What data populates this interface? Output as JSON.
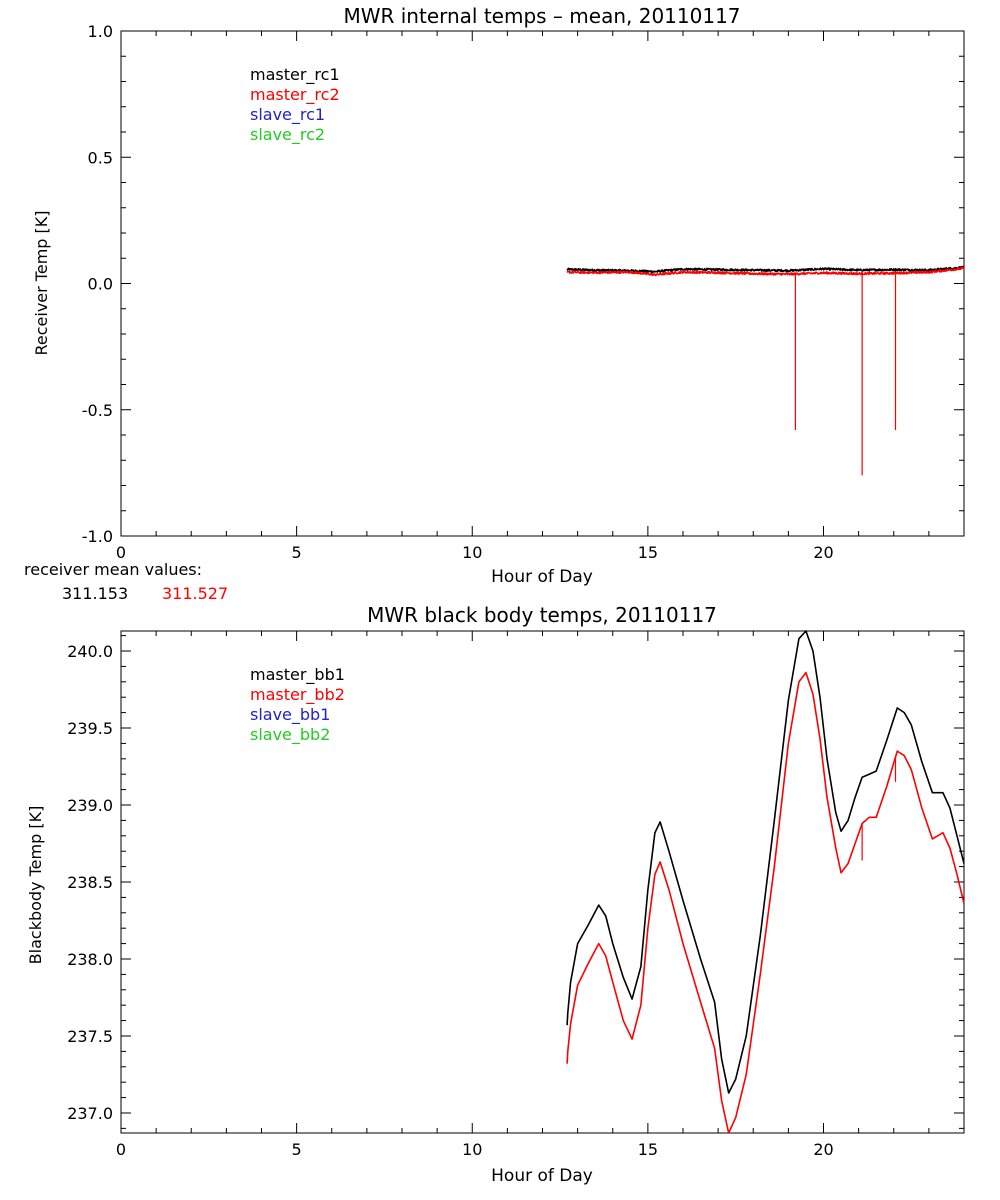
{
  "chart_data": [
    {
      "type": "line",
      "title": "MWR internal temps – mean, 20110117",
      "xlabel": "Hour of Day",
      "ylabel": "Receiver Temp [K]",
      "xlim": [
        0,
        24
      ],
      "ylim": [
        -1.0,
        1.0
      ],
      "xticks": [
        0,
        5,
        10,
        15,
        20
      ],
      "yticks": [
        -1.0,
        -0.5,
        0.0,
        0.5,
        1.0
      ],
      "x_minor_step": 1,
      "y_minor_step": 0.1,
      "grid": false,
      "legend_position": "top-left",
      "series": [
        {
          "name": "master_rc1",
          "color": "#000000",
          "noise": 0.004,
          "points": [
            [
              12.7,
              0.056
            ],
            [
              13.5,
              0.053
            ],
            [
              14.5,
              0.051
            ],
            [
              15.2,
              0.047
            ],
            [
              16.0,
              0.057
            ],
            [
              17.0,
              0.055
            ],
            [
              18.0,
              0.053
            ],
            [
              19.0,
              0.051
            ],
            [
              20.0,
              0.058
            ],
            [
              21.0,
              0.053
            ],
            [
              22.0,
              0.055
            ],
            [
              23.0,
              0.053
            ],
            [
              24.0,
              0.064
            ]
          ]
        },
        {
          "name": "master_rc2",
          "color": "#ff0000",
          "noise": 0.004,
          "points": [
            [
              12.7,
              0.045
            ],
            [
              13.5,
              0.043
            ],
            [
              14.5,
              0.045
            ],
            [
              15.2,
              0.035
            ],
            [
              16.0,
              0.045
            ],
            [
              17.0,
              0.043
            ],
            [
              18.0,
              0.039
            ],
            [
              19.0,
              0.037
            ],
            [
              20.0,
              0.042
            ],
            [
              21.0,
              0.039
            ],
            [
              22.0,
              0.041
            ],
            [
              23.0,
              0.045
            ],
            [
              24.0,
              0.06
            ]
          ],
          "spikes": [
            [
              19.2,
              -0.58
            ],
            [
              21.1,
              -0.76
            ],
            [
              22.05,
              -0.58
            ]
          ]
        },
        {
          "name": "slave_rc1",
          "color": "#2222cc",
          "points": []
        },
        {
          "name": "slave_rc2",
          "color": "#22cc22",
          "points": []
        }
      ],
      "note": {
        "label": "receiver mean values:",
        "values": [
          {
            "text": "311.153",
            "color": "#000000"
          },
          {
            "text": "311.527",
            "color": "#ff0000"
          }
        ]
      }
    },
    {
      "type": "line",
      "title": "MWR black body temps, 20110117",
      "xlabel": "Hour of Day",
      "ylabel": "Blackbody Temp [K]",
      "xlim": [
        0,
        24
      ],
      "ylim": [
        236.87,
        240.13
      ],
      "xticks": [
        0,
        5,
        10,
        15,
        20
      ],
      "yticks": [
        237.0,
        237.5,
        238.0,
        238.5,
        239.0,
        239.5,
        240.0
      ],
      "x_minor_step": 1,
      "y_minor_step": 0.1,
      "grid": false,
      "legend_position": "top-left",
      "series": [
        {
          "name": "master_bb1",
          "color": "#000000",
          "noise": 0,
          "points": [
            [
              12.7,
              237.57
            ],
            [
              12.72,
              237.65
            ],
            [
              12.8,
              237.85
            ],
            [
              13.0,
              238.1
            ],
            [
              13.3,
              238.22
            ],
            [
              13.6,
              238.35
            ],
            [
              13.8,
              238.28
            ],
            [
              14.0,
              238.1
            ],
            [
              14.3,
              237.88
            ],
            [
              14.55,
              237.74
            ],
            [
              14.8,
              237.95
            ],
            [
              15.0,
              238.45
            ],
            [
              15.2,
              238.82
            ],
            [
              15.35,
              238.89
            ],
            [
              15.6,
              238.7
            ],
            [
              16.0,
              238.38
            ],
            [
              16.5,
              238.0
            ],
            [
              16.9,
              237.72
            ],
            [
              17.1,
              237.35
            ],
            [
              17.3,
              237.13
            ],
            [
              17.5,
              237.22
            ],
            [
              17.8,
              237.5
            ],
            [
              18.2,
              238.15
            ],
            [
              18.6,
              238.9
            ],
            [
              19.0,
              239.68
            ],
            [
              19.3,
              240.08
            ],
            [
              19.5,
              240.13
            ],
            [
              19.7,
              240.0
            ],
            [
              19.9,
              239.7
            ],
            [
              20.1,
              239.3
            ],
            [
              20.35,
              238.95
            ],
            [
              20.5,
              238.83
            ],
            [
              20.7,
              238.9
            ],
            [
              20.9,
              239.05
            ],
            [
              21.1,
              239.18
            ],
            [
              21.3,
              239.2
            ],
            [
              21.5,
              239.22
            ],
            [
              21.8,
              239.42
            ],
            [
              22.1,
              239.63
            ],
            [
              22.3,
              239.6
            ],
            [
              22.5,
              239.52
            ],
            [
              22.8,
              239.28
            ],
            [
              23.1,
              239.08
            ],
            [
              23.4,
              239.08
            ],
            [
              23.6,
              238.98
            ],
            [
              23.8,
              238.8
            ],
            [
              24.0,
              238.62
            ]
          ]
        },
        {
          "name": "master_bb2",
          "color": "#ff0000",
          "noise": 0,
          "points": [
            [
              12.7,
              237.32
            ],
            [
              12.72,
              237.4
            ],
            [
              12.8,
              237.58
            ],
            [
              13.0,
              237.83
            ],
            [
              13.3,
              237.97
            ],
            [
              13.6,
              238.1
            ],
            [
              13.8,
              238.02
            ],
            [
              14.0,
              237.85
            ],
            [
              14.3,
              237.6
            ],
            [
              14.55,
              237.48
            ],
            [
              14.8,
              237.7
            ],
            [
              15.0,
              238.2
            ],
            [
              15.2,
              238.55
            ],
            [
              15.35,
              238.63
            ],
            [
              15.6,
              238.45
            ],
            [
              16.0,
              238.1
            ],
            [
              16.5,
              237.72
            ],
            [
              16.9,
              237.42
            ],
            [
              17.1,
              237.08
            ],
            [
              17.3,
              236.87
            ],
            [
              17.5,
              236.97
            ],
            [
              17.8,
              237.25
            ],
            [
              18.2,
              237.9
            ],
            [
              18.6,
              238.6
            ],
            [
              19.0,
              239.4
            ],
            [
              19.3,
              239.8
            ],
            [
              19.5,
              239.86
            ],
            [
              19.7,
              239.72
            ],
            [
              19.9,
              239.43
            ],
            [
              20.1,
              239.05
            ],
            [
              20.35,
              238.72
            ],
            [
              20.5,
              238.56
            ],
            [
              20.7,
              238.62
            ],
            [
              20.9,
              238.75
            ],
            [
              21.1,
              238.88
            ],
            [
              21.3,
              238.92
            ],
            [
              21.5,
              238.92
            ],
            [
              21.8,
              239.12
            ],
            [
              22.1,
              239.35
            ],
            [
              22.3,
              239.32
            ],
            [
              22.5,
              239.23
            ],
            [
              22.8,
              238.98
            ],
            [
              23.1,
              238.78
            ],
            [
              23.4,
              238.82
            ],
            [
              23.6,
              238.72
            ],
            [
              23.8,
              238.55
            ],
            [
              24.0,
              238.36
            ]
          ],
          "spikes": [
            [
              21.1,
              238.64
            ],
            [
              22.05,
              239.15
            ]
          ]
        },
        {
          "name": "slave_bb1",
          "color": "#2222cc",
          "points": []
        },
        {
          "name": "slave_bb2",
          "color": "#22cc22",
          "points": []
        }
      ]
    }
  ]
}
